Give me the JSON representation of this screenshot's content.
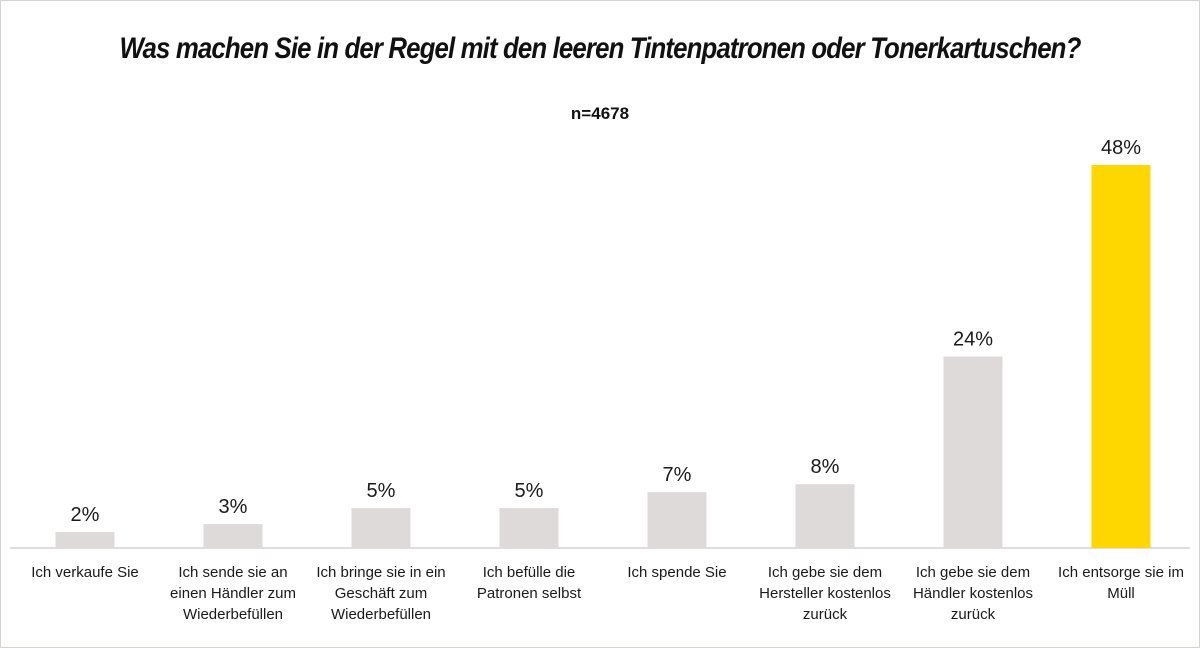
{
  "chart_data": {
    "type": "bar",
    "title": "Was machen Sie in der Regel mit den leeren Tintenpatronen oder Tonerkartuschen?",
    "subtitle": "n=4678",
    "categories": [
      "Ich verkaufe Sie",
      "Ich sende sie an einen Händler zum Wiederbefüllen",
      "Ich bringe sie in ein Geschäft zum Wiederbefüllen",
      "Ich befülle die Patronen selbst",
      "Ich spende Sie",
      "Ich gebe sie dem Hersteller kostenlos zurück",
      "Ich gebe sie dem Händler kostenlos zurück",
      "Ich entsorge sie im Müll"
    ],
    "values": [
      2,
      3,
      5,
      5,
      7,
      8,
      24,
      48
    ],
    "value_labels": [
      "2%",
      "3%",
      "5%",
      "5%",
      "7%",
      "8%",
      "24%",
      "48%"
    ],
    "unit": "%",
    "ylim": [
      0,
      48
    ],
    "grid": false,
    "legend": "none",
    "colors": {
      "default_bar": "#dedad9",
      "highlight_bar": "#ffd700",
      "axis": "#d6d2d2"
    },
    "highlight_index": 7
  }
}
